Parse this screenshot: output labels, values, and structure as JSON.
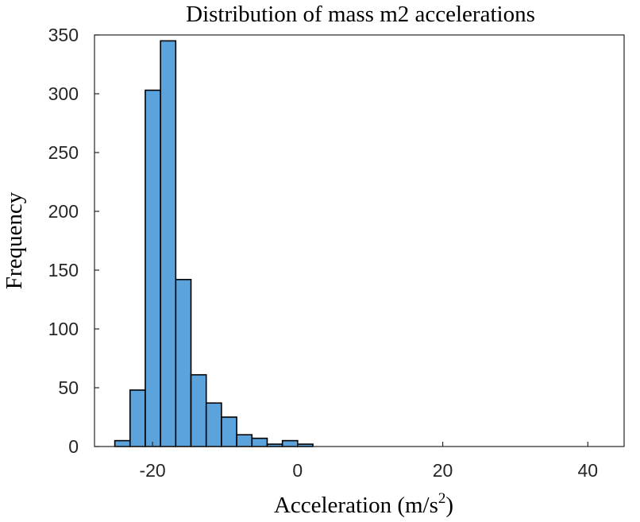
{
  "chart_data": {
    "type": "bar",
    "title": "Distribution of mass m2 accelerations",
    "xlabel": "Acceleration (m/s",
    "xlabel_sup": "2",
    "xlabel_tail": ")",
    "ylabel": "Frequency",
    "xlim": [
      -28,
      45
    ],
    "ylim": [
      0,
      350
    ],
    "xticks": [
      -20,
      0,
      20,
      40
    ],
    "yticks": [
      0,
      50,
      100,
      150,
      200,
      250,
      300,
      350
    ],
    "bin_width": 2.1,
    "bin_start": -25.2,
    "values": [
      5,
      48,
      303,
      345,
      142,
      61,
      37,
      25,
      10,
      7,
      2,
      5,
      2
    ],
    "bar_color": "#5aa3dc",
    "grid": false
  }
}
